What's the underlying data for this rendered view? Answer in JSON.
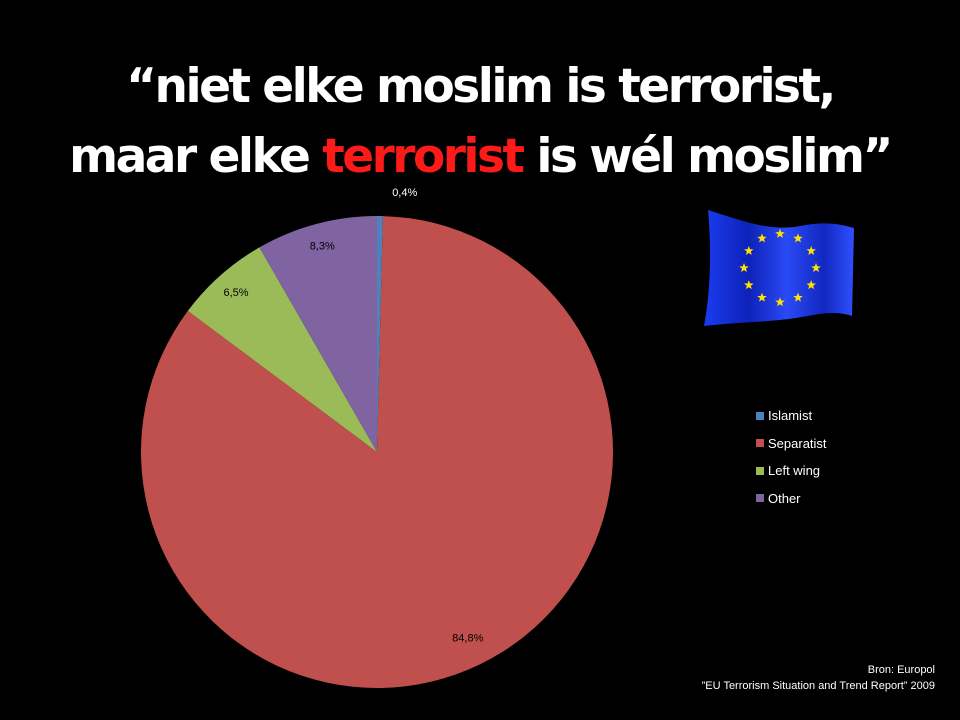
{
  "headline": {
    "line1": "“niet elke moslim is terrorist,",
    "line2_pre": "maar elke ",
    "line2_highlight": "terrorist",
    "line2_post": " is wél moslim”",
    "highlight_color": "#ff1a1a"
  },
  "chart_data": {
    "type": "pie",
    "start_angle_deg": 90,
    "direction": "clockwise",
    "categories": [
      "Islamist",
      "Separatist",
      "Left wing",
      "Other"
    ],
    "values": [
      0.4,
      84.8,
      6.5,
      8.3
    ],
    "data_labels": [
      "0,4%",
      "84,8%",
      "6,5%",
      "8,3%"
    ],
    "colors": [
      "#4f81bd",
      "#c0504d",
      "#9bbb59",
      "#8064a2"
    ],
    "legend_position": "right"
  },
  "flag": {
    "icon": "eu-flag-icon",
    "background": "#1535e0",
    "star_color": "#ffe000"
  },
  "source": {
    "line1": "Bron: Europol",
    "line2": "”EU Terrorism Situation and Trend Report”  2009"
  }
}
